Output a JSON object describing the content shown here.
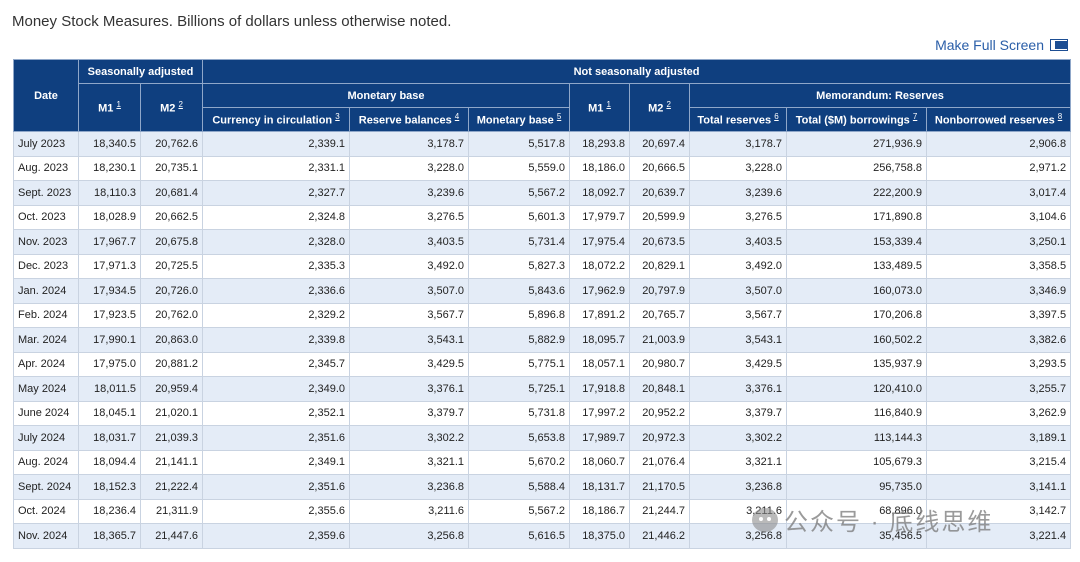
{
  "caption": "Money Stock Measures. Billions of dollars unless otherwise noted.",
  "fullscreen_label": "Make Full Screen",
  "headers": {
    "date": "Date",
    "seasonally_adjusted": "Seasonally adjusted",
    "not_seasonally_adjusted": "Not seasonally adjusted",
    "monetary_base_group": "Monetary base",
    "memorandum_group": "Memorandum: Reserves",
    "m1": "M1",
    "m1_note": "1",
    "m2": "M2",
    "m2_note": "2",
    "currency": "Currency in circulation",
    "currency_note": "3",
    "reserve_balances": "Reserve balances",
    "reserve_balances_note": "4",
    "monetary_base": "Monetary base",
    "monetary_base_note": "5",
    "nsa_m1": "M1",
    "nsa_m1_note": "1",
    "nsa_m2": "M2",
    "nsa_m2_note": "2",
    "total_reserves": "Total reserves",
    "total_reserves_note": "6",
    "borrowings": "Total ($M) borrowings",
    "borrowings_note": "7",
    "nonborrowed": "Nonborrowed reserves",
    "nonborrowed_note": "8"
  },
  "rows": [
    [
      "July 2023",
      "18,340.5",
      "20,762.6",
      "2,339.1",
      "3,178.7",
      "5,517.8",
      "18,293.8",
      "20,697.4",
      "3,178.7",
      "271,936.9",
      "2,906.8"
    ],
    [
      "Aug. 2023",
      "18,230.1",
      "20,735.1",
      "2,331.1",
      "3,228.0",
      "5,559.0",
      "18,186.0",
      "20,666.5",
      "3,228.0",
      "256,758.8",
      "2,971.2"
    ],
    [
      "Sept. 2023",
      "18,110.3",
      "20,681.4",
      "2,327.7",
      "3,239.6",
      "5,567.2",
      "18,092.7",
      "20,639.7",
      "3,239.6",
      "222,200.9",
      "3,017.4"
    ],
    [
      "Oct. 2023",
      "18,028.9",
      "20,662.5",
      "2,324.8",
      "3,276.5",
      "5,601.3",
      "17,979.7",
      "20,599.9",
      "3,276.5",
      "171,890.8",
      "3,104.6"
    ],
    [
      "Nov. 2023",
      "17,967.7",
      "20,675.8",
      "2,328.0",
      "3,403.5",
      "5,731.4",
      "17,975.4",
      "20,673.5",
      "3,403.5",
      "153,339.4",
      "3,250.1"
    ],
    [
      "Dec. 2023",
      "17,971.3",
      "20,725.5",
      "2,335.3",
      "3,492.0",
      "5,827.3",
      "18,072.2",
      "20,829.1",
      "3,492.0",
      "133,489.5",
      "3,358.5"
    ],
    [
      "Jan. 2024",
      "17,934.5",
      "20,726.0",
      "2,336.6",
      "3,507.0",
      "5,843.6",
      "17,962.9",
      "20,797.9",
      "3,507.0",
      "160,073.0",
      "3,346.9"
    ],
    [
      "Feb. 2024",
      "17,923.5",
      "20,762.0",
      "2,329.2",
      "3,567.7",
      "5,896.8",
      "17,891.2",
      "20,765.7",
      "3,567.7",
      "170,206.8",
      "3,397.5"
    ],
    [
      "Mar. 2024",
      "17,990.1",
      "20,863.0",
      "2,339.8",
      "3,543.1",
      "5,882.9",
      "18,095.7",
      "21,003.9",
      "3,543.1",
      "160,502.2",
      "3,382.6"
    ],
    [
      "Apr. 2024",
      "17,975.0",
      "20,881.2",
      "2,345.7",
      "3,429.5",
      "5,775.1",
      "18,057.1",
      "20,980.7",
      "3,429.5",
      "135,937.9",
      "3,293.5"
    ],
    [
      "May 2024",
      "18,011.5",
      "20,959.4",
      "2,349.0",
      "3,376.1",
      "5,725.1",
      "17,918.8",
      "20,848.1",
      "3,376.1",
      "120,410.0",
      "3,255.7"
    ],
    [
      "June 2024",
      "18,045.1",
      "21,020.1",
      "2,352.1",
      "3,379.7",
      "5,731.8",
      "17,997.2",
      "20,952.2",
      "3,379.7",
      "116,840.9",
      "3,262.9"
    ],
    [
      "July 2024",
      "18,031.7",
      "21,039.3",
      "2,351.6",
      "3,302.2",
      "5,653.8",
      "17,989.7",
      "20,972.3",
      "3,302.2",
      "113,144.3",
      "3,189.1"
    ],
    [
      "Aug. 2024",
      "18,094.4",
      "21,141.1",
      "2,349.1",
      "3,321.1",
      "5,670.2",
      "18,060.7",
      "21,076.4",
      "3,321.1",
      "105,679.3",
      "3,215.4"
    ],
    [
      "Sept. 2024",
      "18,152.3",
      "21,222.4",
      "2,351.6",
      "3,236.8",
      "5,588.4",
      "18,131.7",
      "21,170.5",
      "3,236.8",
      "95,735.0",
      "3,141.1"
    ],
    [
      "Oct. 2024",
      "18,236.4",
      "21,311.9",
      "2,355.6",
      "3,211.6",
      "5,567.2",
      "18,186.7",
      "21,244.7",
      "3,211.6",
      "68,896.0",
      "3,142.7"
    ],
    [
      "Nov. 2024",
      "18,365.7",
      "21,447.6",
      "2,359.6",
      "3,256.8",
      "5,616.5",
      "18,375.0",
      "21,446.2",
      "3,256.8",
      "35,456.5",
      "3,221.4"
    ]
  ],
  "watermark": "公众号 · 底线思维",
  "watermark_icon": "wechat-icon",
  "colors": {
    "header_bg": "#0f3f7f",
    "row_alt": "#e4ecf7",
    "link": "#2a5ea8"
  }
}
